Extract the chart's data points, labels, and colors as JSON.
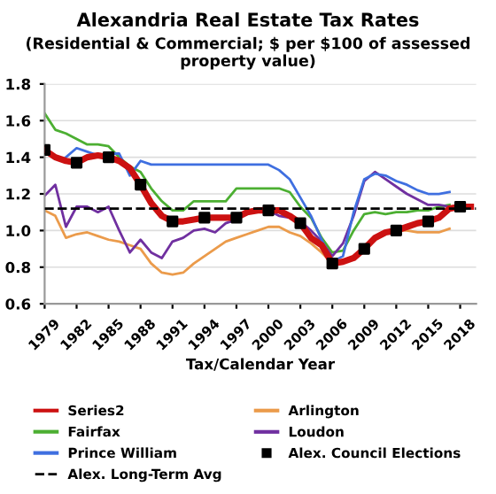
{
  "chart_data": {
    "type": "line",
    "title": "Alexandria Real Estate Tax Rates",
    "subtitle": "(Residential & Commercial; $ per $100 of assessed property value)",
    "xlabel": "Tax/Calendar Year",
    "xlim": [
      1979,
      2019.5
    ],
    "xticks": [
      1979,
      1982,
      1985,
      1988,
      1991,
      1994,
      1997,
      2000,
      2003,
      2006,
      2009,
      2012,
      2015,
      2018
    ],
    "ylim": [
      0.6,
      1.8
    ],
    "yticks": [
      {
        "value": 0.6,
        "label": "0.6"
      },
      {
        "value": 0.8,
        "label": "0.8"
      },
      {
        "value": 1.0,
        "label": "1.0"
      },
      {
        "value": 1.2,
        "label": "1.2"
      },
      {
        "value": 1.4,
        "label": "1.4"
      },
      {
        "value": 1.6,
        "label": "1.6"
      },
      {
        "value": 1.8,
        "label": "1.8"
      }
    ],
    "grid": "y",
    "legend": "bottom",
    "line_style": "solid",
    "series": [
      {
        "name": "Series2",
        "color": "#cc1111",
        "x": [
          1979,
          1980,
          1981,
          1982,
          1983,
          1984,
          1985,
          1986,
          1987,
          1988,
          1989,
          1990,
          1991,
          1992,
          1993,
          1994,
          1995,
          1996,
          1997,
          1998,
          1999,
          2000,
          2001,
          2002,
          2003,
          2004,
          2005,
          2006,
          2007,
          2008,
          2009,
          2010,
          2011,
          2012,
          2013,
          2014,
          2015,
          2016,
          2017,
          2018,
          2019
        ],
        "values": [
          1.44,
          1.4,
          1.38,
          1.37,
          1.4,
          1.41,
          1.4,
          1.38,
          1.34,
          1.25,
          1.15,
          1.08,
          1.05,
          1.05,
          1.06,
          1.07,
          1.07,
          1.07,
          1.07,
          1.1,
          1.11,
          1.11,
          1.11,
          1.08,
          1.04,
          0.96,
          0.92,
          0.82,
          0.83,
          0.85,
          0.9,
          0.96,
          0.99,
          1.0,
          1.02,
          1.04,
          1.05,
          1.07,
          1.12,
          1.13,
          1.13
        ]
      },
      {
        "name": "Arlington",
        "color": "#eb9b4b",
        "x": [
          1979,
          1980,
          1981,
          1982,
          1983,
          1984,
          1985,
          1986,
          1987,
          1988,
          1989,
          1990,
          1991,
          1992,
          1993,
          1994,
          1995,
          1996,
          1997,
          1998,
          1999,
          2000,
          2001,
          2002,
          2003,
          2004,
          2005,
          2006,
          2007,
          2008,
          2009,
          2010,
          2011,
          2012,
          2013,
          2014,
          2015,
          2016,
          2017
        ],
        "values": [
          1.11,
          1.08,
          0.96,
          0.98,
          0.99,
          0.97,
          0.95,
          0.94,
          0.92,
          0.9,
          0.82,
          0.77,
          0.76,
          0.77,
          0.82,
          0.86,
          0.9,
          0.94,
          0.96,
          0.98,
          1.0,
          1.02,
          1.02,
          0.99,
          0.97,
          0.93,
          0.88,
          0.82,
          0.83,
          0.86,
          0.9,
          0.96,
          0.99,
          1.0,
          1.0,
          0.99,
          0.99,
          0.99,
          1.01
        ]
      },
      {
        "name": "Fairfax",
        "color": "#4caf32",
        "x": [
          1979,
          1980,
          1981,
          1982,
          1983,
          1984,
          1985,
          1986,
          1987,
          1988,
          1989,
          1990,
          1991,
          1992,
          1993,
          1994,
          1995,
          1996,
          1997,
          1998,
          1999,
          2000,
          2001,
          2002,
          2003,
          2004,
          2005,
          2006,
          2007,
          2008,
          2009,
          2010,
          2011,
          2012,
          2013,
          2014,
          2015,
          2016,
          2017
        ],
        "values": [
          1.64,
          1.55,
          1.53,
          1.5,
          1.47,
          1.47,
          1.46,
          1.4,
          1.35,
          1.32,
          1.23,
          1.16,
          1.11,
          1.11,
          1.16,
          1.16,
          1.16,
          1.16,
          1.23,
          1.23,
          1.23,
          1.23,
          1.23,
          1.21,
          1.13,
          1.07,
          0.96,
          0.88,
          0.89,
          1.0,
          1.09,
          1.1,
          1.09,
          1.1,
          1.1,
          1.11,
          1.11,
          1.13,
          1.14
        ]
      },
      {
        "name": "Loudon",
        "color": "#7030a0",
        "x": [
          1979,
          1980,
          1981,
          1982,
          1983,
          1984,
          1985,
          1986,
          1987,
          1988,
          1989,
          1990,
          1991,
          1992,
          1993,
          1994,
          1995,
          1996,
          1997,
          1998,
          1999,
          2000,
          2001,
          2002,
          2003,
          2004,
          2005,
          2006,
          2007,
          2008,
          2009,
          2010,
          2011,
          2012,
          2013,
          2014,
          2015,
          2016,
          2017
        ],
        "values": [
          1.19,
          1.25,
          1.02,
          1.13,
          1.13,
          1.1,
          1.13,
          1.0,
          0.88,
          0.95,
          0.88,
          0.85,
          0.94,
          0.96,
          1.0,
          1.01,
          0.99,
          1.04,
          1.06,
          1.1,
          1.11,
          1.11,
          1.08,
          1.07,
          1.05,
          1.0,
          0.94,
          0.86,
          0.93,
          1.08,
          1.27,
          1.32,
          1.28,
          1.24,
          1.2,
          1.17,
          1.14,
          1.14,
          1.13
        ]
      },
      {
        "name": "Prince William",
        "color": "#3f6fe0",
        "x": [
          1981,
          1982,
          1983,
          1984,
          1985,
          1986,
          1987,
          1988,
          1989,
          1990,
          1991,
          1992,
          1993,
          1994,
          1995,
          1996,
          1997,
          1998,
          1999,
          2000,
          2001,
          2002,
          2003,
          2004,
          2005,
          2006,
          2007,
          2008,
          2009,
          2010,
          2011,
          2012,
          2013,
          2014,
          2015,
          2016,
          2017
        ],
        "values": [
          1.4,
          1.45,
          1.43,
          1.41,
          1.42,
          1.42,
          1.3,
          1.38,
          1.36,
          1.36,
          1.36,
          1.36,
          1.36,
          1.36,
          1.36,
          1.36,
          1.36,
          1.36,
          1.36,
          1.36,
          1.33,
          1.28,
          1.18,
          1.08,
          0.95,
          0.83,
          0.86,
          1.1,
          1.28,
          1.31,
          1.3,
          1.27,
          1.25,
          1.22,
          1.2,
          1.2,
          1.21
        ]
      },
      {
        "name": "Alex. Council Elections",
        "type": "scatter",
        "marker": "square",
        "color": "#000000",
        "x": [
          1979,
          1982,
          1985,
          1988,
          1991,
          1994,
          1997,
          2000,
          2003,
          2006,
          2009,
          2012,
          2015,
          2018
        ],
        "values": [
          1.44,
          1.37,
          1.4,
          1.25,
          1.05,
          1.07,
          1.07,
          1.11,
          1.04,
          0.82,
          0.9,
          1.0,
          1.05,
          1.13
        ]
      }
    ],
    "ref_lines": [
      {
        "axis": "y",
        "value": 1.12,
        "label": "Alex. Long-Term Avg",
        "color": "#000000",
        "line_style": "dashed"
      }
    ]
  }
}
